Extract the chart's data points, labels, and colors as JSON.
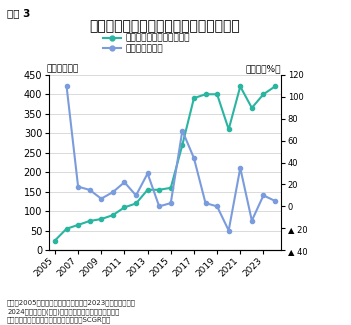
{
  "title": "インドネシア政府によるインフラ予算額",
  "figure_label": "図表 3",
  "ylabel_left": "（兆ルピア）",
  "ylabel_right": "（前年比%）",
  "legend1": "政府によるインフラ予算額",
  "legend2": "前年比（右軸）",
  "note": "（注）2005年以降がデータ入手可能。2023年までは実績、\n2024年は予算。(出所)インドネシア財務省予算総局、\nインドネシア中央統計庁、世界銀行よりSCGR作成",
  "years": [
    2005,
    2006,
    2007,
    2008,
    2009,
    2010,
    2011,
    2012,
    2013,
    2014,
    2015,
    2016,
    2017,
    2018,
    2019,
    2020,
    2021,
    2022,
    2023,
    2024
  ],
  "infra_budget": [
    25,
    55,
    65,
    75,
    80,
    90,
    110,
    120,
    155,
    155,
    160,
    270,
    390,
    400,
    400,
    310,
    420,
    365,
    400,
    420
  ],
  "yoy": [
    null,
    110,
    18,
    15,
    7,
    13,
    22,
    10,
    30,
    0,
    3,
    69,
    44,
    3,
    0,
    -22,
    35,
    -13,
    10,
    5
  ],
  "color_budget": "#2ab5a0",
  "color_yoy": "#7b9cdc",
  "ylim_left": [
    0,
    450
  ],
  "ylim_right": [
    -40,
    120
  ],
  "yticks_left": [
    0,
    50,
    100,
    150,
    200,
    250,
    300,
    350,
    400,
    450
  ],
  "yticks_right": [
    -40,
    -20,
    0,
    20,
    40,
    60,
    80,
    100,
    120
  ],
  "background_color": "#ffffff"
}
